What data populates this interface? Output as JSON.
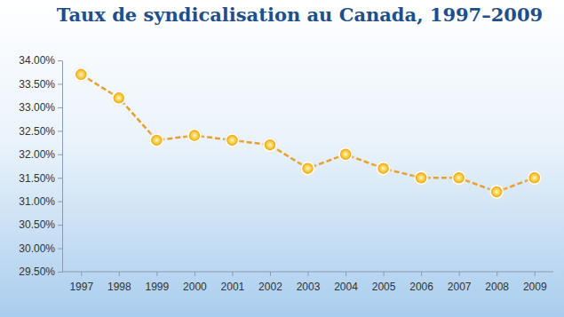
{
  "chart_data": {
    "type": "line",
    "title": "Taux de syndicalisation au Canada, 1997–2009",
    "categories": [
      "1997",
      "1998",
      "1999",
      "2000",
      "2001",
      "2002",
      "2003",
      "2004",
      "2005",
      "2006",
      "2007",
      "2008",
      "2009"
    ],
    "values": [
      33.7,
      33.2,
      32.3,
      32.4,
      32.3,
      32.2,
      31.7,
      32.0,
      31.7,
      31.5,
      31.5,
      31.2,
      31.5
    ],
    "color": "#e8a030",
    "marker": "circle",
    "line_style": "dashed",
    "ylim": [
      29.5,
      34
    ],
    "yticks": [
      {
        "value": 29.5,
        "label": "29.50%"
      },
      {
        "value": 30,
        "label": "30.00%"
      },
      {
        "value": 30.5,
        "label": "30.50%"
      },
      {
        "value": 31,
        "label": "31.00%"
      },
      {
        "value": 31.5,
        "label": "31.50%"
      },
      {
        "value": 32,
        "label": "32.00%"
      },
      {
        "value": 32.5,
        "label": "32.50%"
      },
      {
        "value": 33,
        "label": "33.00%"
      },
      {
        "value": 33.5,
        "label": "33.50%"
      },
      {
        "value": 34,
        "label": "34.00%"
      }
    ]
  }
}
